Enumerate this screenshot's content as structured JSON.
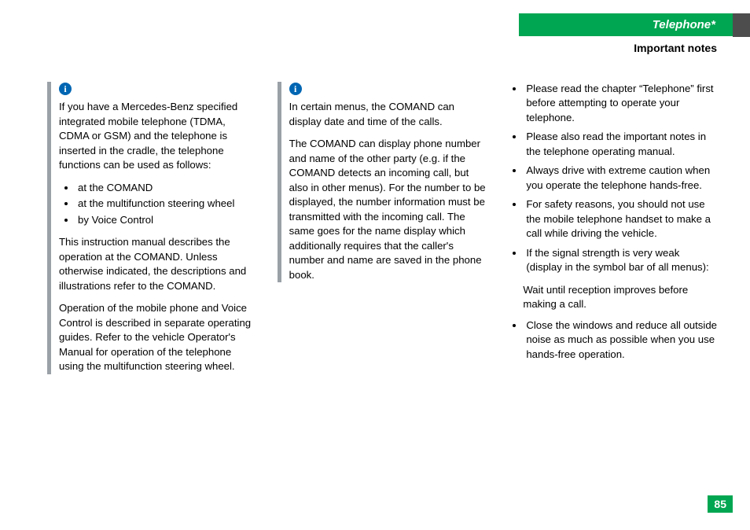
{
  "header": {
    "tab_title": "Telephone*",
    "section_title": "Important notes",
    "tab_bg": "#00a651",
    "side_bg": "#4d4d4d"
  },
  "col1": {
    "info_box": {
      "intro": "If you have a Mercedes-Benz specified integrated mobile telephone (TDMA, CDMA or GSM) and the telephone is inserted in the cradle, the telephone functions can be used as follows:",
      "bullets": [
        "at the COMAND",
        "at the multifunction steering wheel",
        "by Voice Control"
      ],
      "para1": "This instruction manual describes the operation at the COMAND. Unless otherwise indicated, the descriptions and illustrations refer to the COMAND.",
      "para2": "Operation of the mobile phone and Voice Control is described in separate operating guides. Refer to the vehicle Operator's Manual for operation of the telephone using the multifunction steering wheel."
    }
  },
  "col2": {
    "info_box": {
      "para1": "In certain menus, the COMAND can display date and time of the calls.",
      "para2": "The COMAND can display phone number and name of the other party (e.g. if the COMAND detects an incoming call, but also in other menus). For the number to be displayed, the number information must be transmitted with the incoming call. The same goes for the name display which additionally requires that the caller's number and name are saved in the phone book."
    }
  },
  "col3": {
    "bullets": [
      "Please read the chapter “Telephone” first before attempting to operate your telephone.",
      "Please also read the important notes in the telephone operating manual.",
      "Always drive with extreme caution when you operate the telephone hands-free.",
      "For safety reasons, you should not use the mobile telephone handset to make a call while driving the vehicle.",
      "If the signal strength is very weak (display in the symbol bar of all menus):"
    ],
    "sub": "Wait until reception improves before making a call.",
    "last_bullet": "Close the windows and reduce all outside noise as much as possible when you use hands-free operation."
  },
  "page_number": "85",
  "colors": {
    "info_icon_bg": "#0066b3",
    "border_gray": "#9aa1a7"
  }
}
